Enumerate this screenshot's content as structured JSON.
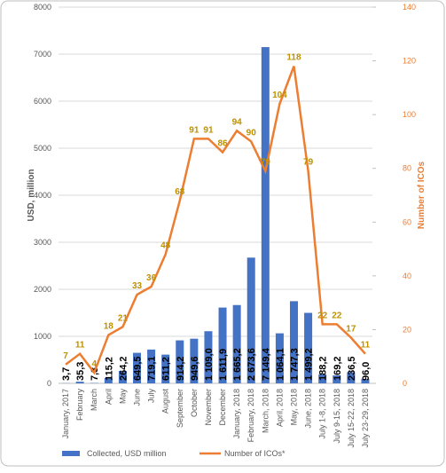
{
  "chart_data": {
    "type": "bar-line",
    "y_label": "USD, million",
    "y2_label": "Number of ICOs",
    "categories": [
      "January, 2017",
      "February",
      "March",
      "April",
      "May",
      "June",
      "July",
      "August",
      "September",
      "October",
      "November",
      "December",
      "January, 2018",
      "February, 2018",
      "March, 2018",
      "April, 2018",
      "May, 2018",
      "June, 2018",
      "July 1-8, 2018",
      "July 9-15, 2018",
      "July 15-22, 2018",
      "July 23-29, 2018"
    ],
    "series": [
      {
        "name": "Collected, USD million",
        "color": "#4472c4",
        "type": "bar",
        "values": [
          3.7,
          35.3,
          7.3,
          115.2,
          264.2,
          649.5,
          719.1,
          611.2,
          914.2,
          949.6,
          1109.0,
          1611.9,
          1665.2,
          2673.6,
          7149.4,
          1064.1,
          1747.3,
          1499.2,
          188.2,
          169.2,
          236.5,
          96.0
        ],
        "value_labels": [
          "3,7",
          "35,3",
          "7,3",
          "115,2",
          "264,2",
          "649,5",
          "719,1",
          "611,2",
          "914,2",
          "949,6",
          "1 109,0",
          "1 611,9",
          "1 665,2",
          "2 673,6",
          "7 149,4",
          "1 064,1",
          "1 747,3",
          "1 499,2",
          "188,2",
          "169,2",
          "236,5",
          "96,0"
        ]
      },
      {
        "name": "Number of ICOs*",
        "color": "#ed7d31",
        "type": "line",
        "axis": "y2",
        "values": [
          7,
          11,
          4,
          18,
          21,
          33,
          36,
          48,
          68,
          91,
          91,
          86,
          94,
          90,
          79,
          104,
          118,
          79,
          22,
          22,
          17,
          11
        ]
      }
    ],
    "ylim": [
      0,
      8000
    ],
    "yticks": [
      0,
      1000,
      2000,
      3000,
      4000,
      5000,
      6000,
      7000,
      8000
    ],
    "y2lim": [
      0,
      140
    ],
    "y2ticks": [
      0,
      20,
      40,
      60,
      80,
      100,
      120,
      140
    ],
    "grid": true
  }
}
